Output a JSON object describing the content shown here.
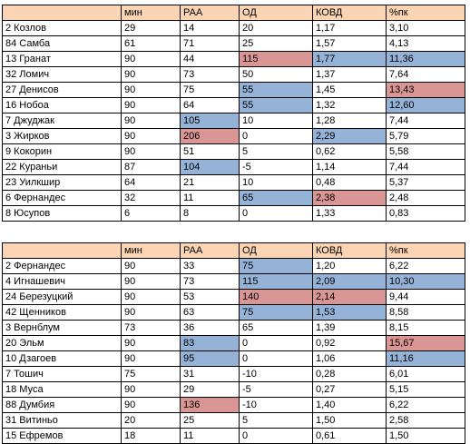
{
  "table1": {
    "headers": [
      "",
      "мин",
      "РАА",
      "ОД",
      "КОВД",
      "%пк"
    ],
    "rows": [
      {
        "cells": [
          "2 Козлов",
          "29",
          "14",
          "20",
          "1,17",
          "3,10"
        ],
        "hl": [
          "",
          "",
          "",
          "",
          "",
          ""
        ]
      },
      {
        "cells": [
          "84 Самба",
          "61",
          "71",
          "25",
          "1,57",
          "4,13"
        ],
        "hl": [
          "",
          "",
          "",
          "",
          "",
          ""
        ]
      },
      {
        "cells": [
          "13 Гранат",
          "90",
          "44",
          "115",
          "1,77",
          "11,36"
        ],
        "hl": [
          "",
          "",
          "",
          "red",
          "blue",
          "blue"
        ]
      },
      {
        "cells": [
          "32 Ломич",
          "90",
          "73",
          "50",
          "1,37",
          "7,64"
        ],
        "hl": [
          "",
          "",
          "",
          "",
          "",
          ""
        ]
      },
      {
        "cells": [
          "27 Денисов",
          "90",
          "75",
          "55",
          "1,45",
          "13,43"
        ],
        "hl": [
          "",
          "",
          "",
          "blue",
          "",
          "red"
        ]
      },
      {
        "cells": [
          "16 Нобоа",
          "90",
          "64",
          "55",
          "1,32",
          "12,60"
        ],
        "hl": [
          "",
          "",
          "",
          "blue",
          "",
          "blue"
        ]
      },
      {
        "cells": [
          "7 Джуджак",
          "90",
          "105",
          "10",
          "1,28",
          "7,44"
        ],
        "hl": [
          "",
          "",
          "blue",
          "",
          "",
          ""
        ]
      },
      {
        "cells": [
          "3 Жирков",
          "90",
          "206",
          "0",
          "2,29",
          "5,79"
        ],
        "hl": [
          "",
          "",
          "red",
          "",
          "blue",
          ""
        ]
      },
      {
        "cells": [
          "9 Кокорин",
          "90",
          "51",
          "5",
          "0,62",
          "5,58"
        ],
        "hl": [
          "",
          "",
          "",
          "",
          "",
          ""
        ]
      },
      {
        "cells": [
          "22 Кураньи",
          "87",
          "104",
          "-5",
          "1,14",
          "7,44"
        ],
        "hl": [
          "",
          "",
          "blue",
          "",
          "",
          ""
        ]
      },
      {
        "cells": [
          "23 Уилкшир",
          "64",
          "21",
          "10",
          "0,48",
          "5,37"
        ],
        "hl": [
          "",
          "",
          "",
          "",
          "",
          ""
        ]
      },
      {
        "cells": [
          "6 Фернандес",
          "32",
          "11",
          "65",
          "2,38",
          "2,48"
        ],
        "hl": [
          "",
          "",
          "",
          "blue",
          "red",
          ""
        ]
      },
      {
        "cells": [
          "8 Юсупов",
          "6",
          "8",
          "0",
          "1,33",
          "0,83"
        ],
        "hl": [
          "",
          "",
          "",
          "",
          "",
          ""
        ]
      }
    ]
  },
  "table2": {
    "headers": [
      "",
      "мин",
      "РАА",
      "ОД",
      "КОВД",
      "%пк"
    ],
    "rows": [
      {
        "cells": [
          "2 Фернандес",
          "90",
          "33",
          "75",
          "1,20",
          "6,22"
        ],
        "hl": [
          "",
          "",
          "",
          "blue",
          "",
          ""
        ]
      },
      {
        "cells": [
          "4 Игнашевич",
          "90",
          "73",
          "115",
          "2,09",
          "10,30"
        ],
        "hl": [
          "",
          "",
          "",
          "blue",
          "blue",
          "blue"
        ]
      },
      {
        "cells": [
          "24 Березуцкий",
          "90",
          "53",
          "140",
          "2,14",
          "9,44"
        ],
        "hl": [
          "",
          "",
          "",
          "red",
          "red",
          ""
        ]
      },
      {
        "cells": [
          "42 Щенников",
          "90",
          "63",
          "75",
          "1,53",
          "8,58"
        ],
        "hl": [
          "",
          "",
          "",
          "blue",
          "blue",
          ""
        ]
      },
      {
        "cells": [
          "3 Вернблум",
          "73",
          "36",
          "65",
          "1,39",
          "8,15"
        ],
        "hl": [
          "",
          "",
          "",
          "",
          "",
          ""
        ]
      },
      {
        "cells": [
          "20 Эльм",
          "90",
          "83",
          "0",
          "0,92",
          "15,67"
        ],
        "hl": [
          "",
          "",
          "blue",
          "",
          "",
          "red"
        ]
      },
      {
        "cells": [
          "10 Дзагоев",
          "90",
          "95",
          "0",
          "1,06",
          "11,16"
        ],
        "hl": [
          "",
          "",
          "blue",
          "",
          "",
          "blue"
        ]
      },
      {
        "cells": [
          "7 Тошич",
          "75",
          "31",
          "-10",
          "0,28",
          "6,01"
        ],
        "hl": [
          "",
          "",
          "",
          "",
          "",
          ""
        ]
      },
      {
        "cells": [
          "18 Муса",
          "90",
          "29",
          "-5",
          "0,27",
          "5,15"
        ],
        "hl": [
          "",
          "",
          "",
          "",
          "",
          ""
        ]
      },
      {
        "cells": [
          "88 Думбия",
          "90",
          "136",
          "-10",
          "1,40",
          "6,22"
        ],
        "hl": [
          "",
          "",
          "red",
          "",
          "",
          ""
        ]
      },
      {
        "cells": [
          "31 Витиньо",
          "20",
          "25",
          "5",
          "1,50",
          "2,58"
        ],
        "hl": [
          "",
          "",
          "",
          "",
          "",
          ""
        ]
      },
      {
        "cells": [
          "15 Ефремов",
          "18",
          "11",
          "0",
          "0,61",
          "1,50"
        ],
        "hl": [
          "",
          "",
          "",
          "",
          "",
          ""
        ]
      }
    ]
  },
  "colors": {
    "header": "#fbd4b4",
    "blue": "#95b3d7",
    "red": "#da9694"
  }
}
